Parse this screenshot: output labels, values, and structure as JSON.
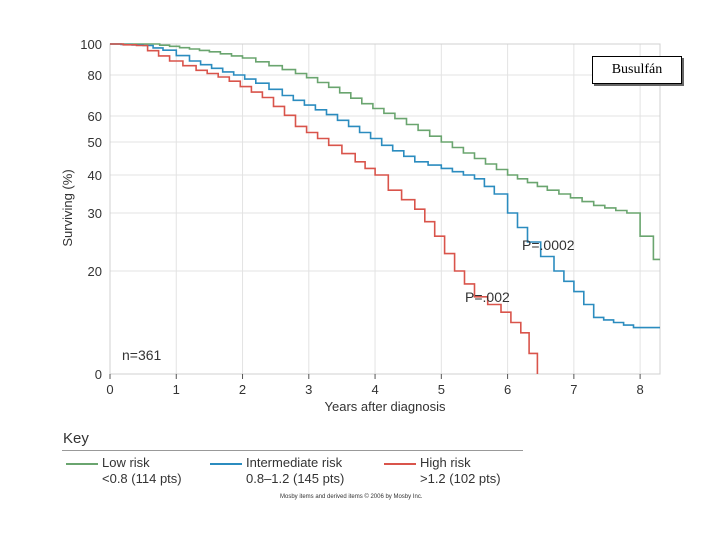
{
  "chart_data": {
    "type": "line",
    "xlabel": "Years after diagnosis",
    "ylabel": "Surviving (%)",
    "xlim": [
      0,
      8.3
    ],
    "ylim": [
      0,
      100
    ],
    "x_ticks": [
      "0",
      "1",
      "2",
      "3",
      "4",
      "5",
      "6",
      "7",
      "8"
    ],
    "y_ticks": [
      "100",
      "80",
      "60",
      "50",
      "40",
      "30",
      "20",
      "0"
    ],
    "grid": true,
    "annotations": {
      "n": "n=361",
      "p_intermediate": "P=.0002",
      "p_high": "P=.002"
    },
    "series": [
      {
        "name": "Low risk",
        "detail": "<0.8 (114 pts)",
        "color": "#6aa56f",
        "points": [
          [
            0,
            100
          ],
          [
            0.6,
            100
          ],
          [
            0.9,
            98.5
          ],
          [
            1.5,
            95
          ],
          [
            2.0,
            91
          ],
          [
            2.4,
            86
          ],
          [
            2.8,
            81
          ],
          [
            3.3,
            74
          ],
          [
            3.8,
            66
          ],
          [
            4.3,
            59
          ],
          [
            5.0,
            50
          ],
          [
            5.5,
            45
          ],
          [
            6.0,
            40
          ],
          [
            6.6,
            36
          ],
          [
            7.3,
            32
          ],
          [
            7.8,
            30
          ],
          [
            8.0,
            26
          ],
          [
            8.2,
            22
          ],
          [
            8.3,
            22
          ]
        ]
      },
      {
        "name": "Intermediate risk",
        "detail": "0.8–1.2 (145 pts)",
        "color": "#2b8cbf",
        "points": [
          [
            0,
            100
          ],
          [
            0.5,
            99
          ],
          [
            0.8,
            96
          ],
          [
            1.2,
            89
          ],
          [
            1.7,
            82
          ],
          [
            2.2,
            76
          ],
          [
            2.6,
            70
          ],
          [
            3.1,
            63
          ],
          [
            3.6,
            56
          ],
          [
            4.1,
            49
          ],
          [
            4.6,
            44
          ],
          [
            5.0,
            42
          ],
          [
            5.5,
            39
          ],
          [
            5.8,
            35
          ],
          [
            6.0,
            30
          ],
          [
            6.3,
            25
          ],
          [
            6.7,
            20
          ],
          [
            7.0,
            16
          ],
          [
            7.3,
            11
          ],
          [
            7.9,
            9
          ],
          [
            8.3,
            9
          ]
        ]
      },
      {
        "name": "High risk",
        "detail": ">1.2 (102 pts)",
        "color": "#d9544b",
        "points": [
          [
            0,
            100
          ],
          [
            0.4,
            99
          ],
          [
            0.9,
            89
          ],
          [
            1.3,
            83
          ],
          [
            1.8,
            77
          ],
          [
            2.3,
            69
          ],
          [
            2.8,
            56
          ],
          [
            3.3,
            49
          ],
          [
            3.7,
            44
          ],
          [
            4.0,
            40
          ],
          [
            4.2,
            36
          ],
          [
            4.6,
            31
          ],
          [
            4.9,
            26
          ],
          [
            5.2,
            20
          ],
          [
            5.5,
            15
          ],
          [
            5.9,
            12
          ],
          [
            6.2,
            8
          ],
          [
            6.45,
            0
          ]
        ]
      }
    ]
  },
  "key": {
    "title": "Key"
  },
  "credit": "Mosby items and derived items © 2006 by Mosby Inc.",
  "label": "Busulfán"
}
